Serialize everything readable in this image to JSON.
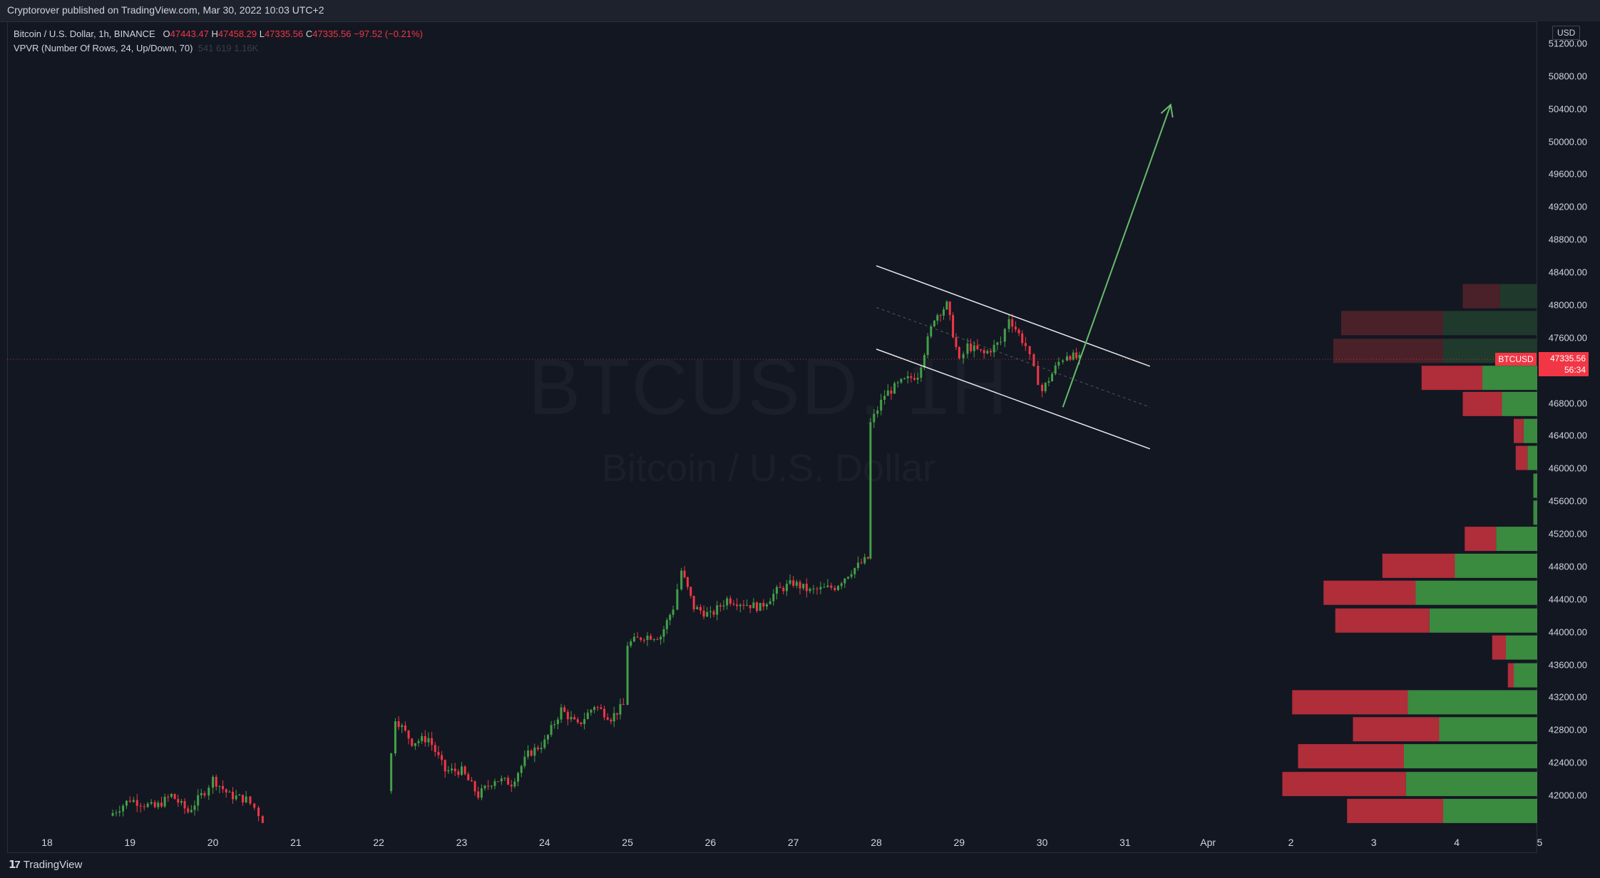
{
  "header": {
    "published": "Cryptorover published on TradingView.com, Mar 30, 2022 10:03 UTC+2"
  },
  "legend": {
    "symbol": "Bitcoin / U.S. Dollar, 1h, BINANCE",
    "open_label": "O",
    "open": "47443.47",
    "high_label": "H",
    "high": "47458.29",
    "low_label": "L",
    "low": "47335.56",
    "close_label": "C",
    "close": "47335.56",
    "change": "−97.52 (−0.21%)",
    "vpvr": "VPVR (Number Of Rows, 24, Up/Down, 70)",
    "vpvr_values": "541  619  1.16K"
  },
  "watermark": {
    "ticker": "BTCUSD, 1H",
    "name": "Bitcoin / U.S. Dollar"
  },
  "price_axis": {
    "currency": "USD"
  },
  "price_tag": {
    "symbol": "BTCUSD",
    "price": "47335.56",
    "countdown": "56:34"
  },
  "colors": {
    "up": "#43a047",
    "down": "#f23645",
    "vp_up_dim": "#1f3a2c",
    "vp_down_dim": "#4a2129",
    "vp_up": "#3a8a3f",
    "vp_down": "#b02d3a",
    "channel": "#ffffff",
    "arrow": "#66bb6a"
  },
  "footer": {
    "brand": "TradingView"
  },
  "chart_data": {
    "type": "candlestick",
    "timeframe": "1h",
    "x_ticks": [
      "18",
      "19",
      "20",
      "21",
      "22",
      "23",
      "24",
      "25",
      "26",
      "27",
      "28",
      "29",
      "30",
      "31",
      "Apr",
      "2",
      "3",
      "4",
      "5"
    ],
    "y_ticks": [
      "42000.00",
      "42400.00",
      "42800.00",
      "43200.00",
      "43600.00",
      "44000.00",
      "44400.00",
      "44800.00",
      "45200.00",
      "45600.00",
      "46000.00",
      "46400.00",
      "46800.00",
      "47200.00",
      "47600.00",
      "48000.00",
      "48400.00",
      "48800.00",
      "49200.00",
      "49600.00",
      "50000.00",
      "50400.00",
      "50800.00",
      "51200.00"
    ],
    "ylim": [
      41600,
      51400
    ],
    "price_path": [
      [
        18.75,
        41750
      ],
      [
        19.0,
        41950
      ],
      [
        19.3,
        41850
      ],
      [
        19.5,
        42000
      ],
      [
        19.7,
        41800
      ],
      [
        19.9,
        42050
      ],
      [
        20.0,
        42200
      ],
      [
        20.2,
        42000
      ],
      [
        20.4,
        41950
      ],
      [
        20.5,
        41850
      ],
      [
        20.6,
        41700
      ],
      [
        22.1,
        42050
      ],
      [
        22.2,
        42950
      ],
      [
        22.4,
        42650
      ],
      [
        22.6,
        42700
      ],
      [
        22.8,
        42300
      ],
      [
        23.0,
        42300
      ],
      [
        23.2,
        42000
      ],
      [
        23.4,
        42200
      ],
      [
        23.6,
        42150
      ],
      [
        23.8,
        42500
      ],
      [
        24.0,
        42650
      ],
      [
        24.2,
        43050
      ],
      [
        24.4,
        42850
      ],
      [
        24.6,
        43100
      ],
      [
        24.8,
        42950
      ],
      [
        24.95,
        43100
      ],
      [
        25.0,
        43850
      ],
      [
        25.2,
        43950
      ],
      [
        25.4,
        43950
      ],
      [
        25.55,
        44300
      ],
      [
        25.65,
        44750
      ],
      [
        25.8,
        44300
      ],
      [
        26.0,
        44200
      ],
      [
        26.2,
        44400
      ],
      [
        26.4,
        44350
      ],
      [
        26.6,
        44300
      ],
      [
        26.8,
        44500
      ],
      [
        27.0,
        44600
      ],
      [
        27.2,
        44500
      ],
      [
        27.5,
        44550
      ],
      [
        27.7,
        44750
      ],
      [
        27.9,
        44900
      ],
      [
        27.93,
        46550
      ],
      [
        28.1,
        46900
      ],
      [
        28.3,
        47050
      ],
      [
        28.5,
        47150
      ],
      [
        28.7,
        47850
      ],
      [
        28.85,
        48000
      ],
      [
        29.0,
        47300
      ],
      [
        29.1,
        47500
      ],
      [
        29.3,
        47400
      ],
      [
        29.5,
        47550
      ],
      [
        29.6,
        47850
      ],
      [
        29.8,
        47500
      ],
      [
        29.9,
        47200
      ],
      [
        30.0,
        46950
      ],
      [
        30.2,
        47300
      ],
      [
        30.3,
        47400
      ],
      [
        30.45,
        47335.56
      ]
    ],
    "last_price": 47335.56,
    "channel": {
      "upper": [
        [
          28.0,
          48480
        ],
        [
          31.3,
          47250
        ]
      ],
      "lower": [
        [
          28.0,
          47460
        ],
        [
          31.3,
          46240
        ]
      ],
      "mid": [
        [
          28.0,
          47970
        ],
        [
          31.3,
          46750
        ]
      ]
    },
    "projection_arrow": [
      [
        30.25,
        46750
      ],
      [
        31.55,
        50450
      ]
    ],
    "volume_profile": [
      {
        "price": 48100,
        "up": 0.19,
        "down": 0.19
      },
      {
        "price": 47770,
        "up": 0.48,
        "down": 0.52
      },
      {
        "price": 47430,
        "up": 0.48,
        "down": 0.56
      },
      {
        "price": 47100,
        "up": 0.28,
        "down": 0.31
      },
      {
        "price": 46780,
        "up": 0.18,
        "down": 0.2
      },
      {
        "price": 46450,
        "up": 0.07,
        "down": 0.05
      },
      {
        "price": 46120,
        "up": 0.05,
        "down": 0.06
      },
      {
        "price": 45780,
        "up": 0.02,
        "down": 0.0
      },
      {
        "price": 45450,
        "up": 0.02,
        "down": 0.0
      },
      {
        "price": 45130,
        "up": 0.21,
        "down": 0.16
      },
      {
        "price": 44800,
        "up": 0.42,
        "down": 0.37
      },
      {
        "price": 44470,
        "up": 0.62,
        "down": 0.47
      },
      {
        "price": 44130,
        "up": 0.55,
        "down": 0.48
      },
      {
        "price": 43800,
        "up": 0.16,
        "down": 0.07
      },
      {
        "price": 43460,
        "up": 0.12,
        "down": 0.03
      },
      {
        "price": 43130,
        "up": 0.66,
        "down": 0.59
      },
      {
        "price": 42800,
        "up": 0.5,
        "down": 0.44
      },
      {
        "price": 42470,
        "up": 0.68,
        "down": 0.54
      },
      {
        "price": 42130,
        "up": 0.67,
        "down": 0.63
      },
      {
        "price": 41800,
        "up": 0.48,
        "down": 0.49
      }
    ]
  }
}
